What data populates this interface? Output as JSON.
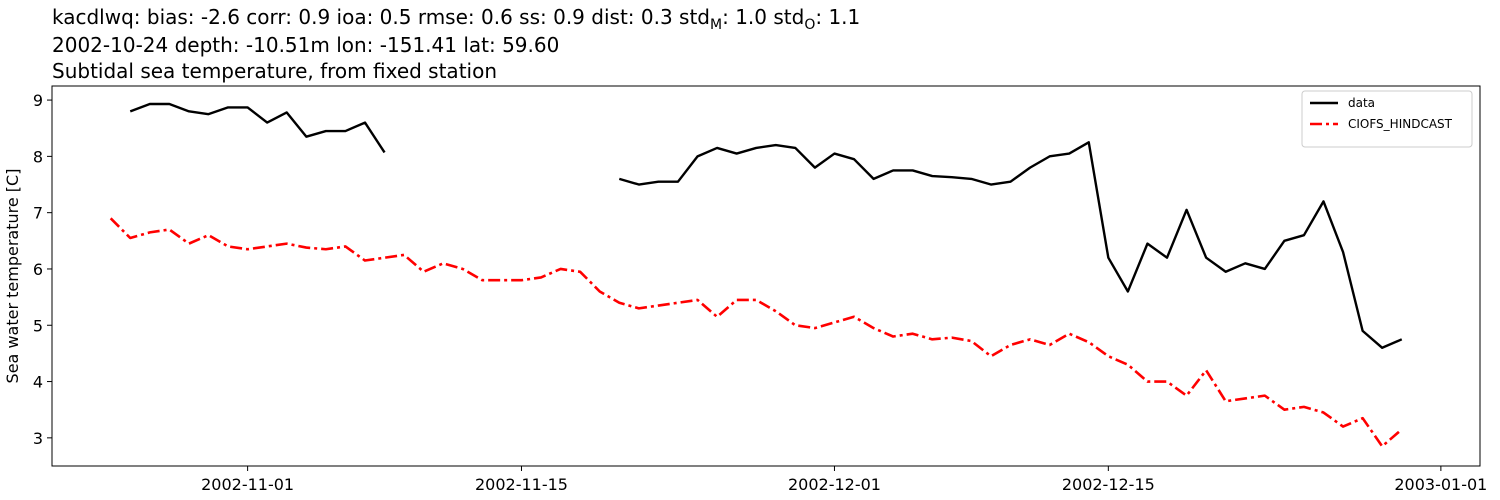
{
  "chart_data": {
    "type": "line",
    "title_segments": [
      "kacdlwq: bias: -2.6  corr: 0.9  ioa: 0.5  rmse: 0.6  ss: 0.9  dist: 0.3  std",
      "M",
      ": 1.0  std",
      "O",
      ": 1.1"
    ],
    "subtitle": "2002-10-24 depth: -10.51m lon: -151.41 lat: 59.60",
    "subtitle2": "Subtidal sea temperature, from fixed station",
    "ylabel": "Sea water temperature [C]",
    "x": [
      "2002-10-25",
      "2002-10-26",
      "2002-10-27",
      "2002-10-28",
      "2002-10-29",
      "2002-10-30",
      "2002-10-31",
      "2002-11-01",
      "2002-11-02",
      "2002-11-03",
      "2002-11-04",
      "2002-11-05",
      "2002-11-06",
      "2002-11-07",
      "2002-11-08",
      "2002-11-09",
      "2002-11-10",
      "2002-11-11",
      "2002-11-12",
      "2002-11-13",
      "2002-11-14",
      "2002-11-15",
      "2002-11-16",
      "2002-11-17",
      "2002-11-18",
      "2002-11-19",
      "2002-11-20",
      "2002-11-21",
      "2002-11-22",
      "2002-11-23",
      "2002-11-24",
      "2002-11-25",
      "2002-11-26",
      "2002-11-27",
      "2002-11-28",
      "2002-11-29",
      "2002-11-30",
      "2002-12-01",
      "2002-12-02",
      "2002-12-03",
      "2002-12-04",
      "2002-12-05",
      "2002-12-06",
      "2002-12-07",
      "2002-12-08",
      "2002-12-09",
      "2002-12-10",
      "2002-12-11",
      "2002-12-12",
      "2002-12-13",
      "2002-12-14",
      "2002-12-15",
      "2002-12-16",
      "2002-12-17",
      "2002-12-18",
      "2002-12-19",
      "2002-12-20",
      "2002-12-21",
      "2002-12-22",
      "2002-12-23",
      "2002-12-24",
      "2002-12-25",
      "2002-12-26",
      "2002-12-27",
      "2002-12-28",
      "2002-12-29",
      "2002-12-30",
      "2002-12-31"
    ],
    "series": [
      {
        "name": "data",
        "color": "#000000",
        "linestyle": "solid",
        "values": [
          null,
          8.8,
          8.93,
          8.93,
          8.8,
          8.75,
          8.87,
          8.87,
          8.6,
          8.78,
          8.35,
          8.45,
          8.45,
          8.6,
          8.07,
          null,
          null,
          null,
          null,
          null,
          null,
          null,
          null,
          null,
          null,
          null,
          7.6,
          7.5,
          7.55,
          7.55,
          8.0,
          8.15,
          8.05,
          8.15,
          8.2,
          8.15,
          7.8,
          8.05,
          7.95,
          7.6,
          7.75,
          7.75,
          7.65,
          7.63,
          7.6,
          7.5,
          7.55,
          7.8,
          8.0,
          8.05,
          8.25,
          6.2,
          5.6,
          6.45,
          6.2,
          7.05,
          6.2,
          5.95,
          6.1,
          6.0,
          6.5,
          6.6,
          7.2,
          6.3,
          4.9,
          4.6,
          4.75,
          null
        ]
      },
      {
        "name": "CIOFS_HINDCAST",
        "color": "#ff0000",
        "linestyle": "dashdot",
        "values": [
          6.9,
          6.55,
          6.65,
          6.7,
          6.45,
          6.6,
          6.4,
          6.35,
          6.4,
          6.45,
          6.38,
          6.35,
          6.4,
          6.15,
          6.2,
          6.25,
          5.95,
          6.1,
          6.0,
          5.8,
          5.8,
          5.8,
          5.85,
          6.0,
          5.95,
          5.6,
          5.4,
          5.3,
          5.35,
          5.4,
          5.45,
          5.15,
          5.45,
          5.45,
          5.25,
          5.0,
          4.95,
          5.05,
          5.15,
          4.95,
          4.8,
          4.85,
          4.75,
          4.78,
          4.72,
          4.45,
          4.65,
          4.75,
          4.65,
          4.85,
          4.7,
          4.45,
          4.3,
          4.0,
          4.0,
          3.75,
          4.2,
          3.65,
          3.7,
          3.75,
          3.5,
          3.55,
          3.45,
          3.2,
          3.35,
          2.85,
          3.15,
          null
        ]
      }
    ],
    "xlim": [
      "2002-10-22",
      "2003-01-03"
    ],
    "xticks": [
      "2002-11-01",
      "2002-11-15",
      "2002-12-01",
      "2002-12-15",
      "2003-01-01"
    ],
    "ylim": [
      2.5,
      9.25
    ],
    "yticks": [
      3,
      4,
      5,
      6,
      7,
      8,
      9
    ],
    "legend": "upper right",
    "grid": false
  }
}
